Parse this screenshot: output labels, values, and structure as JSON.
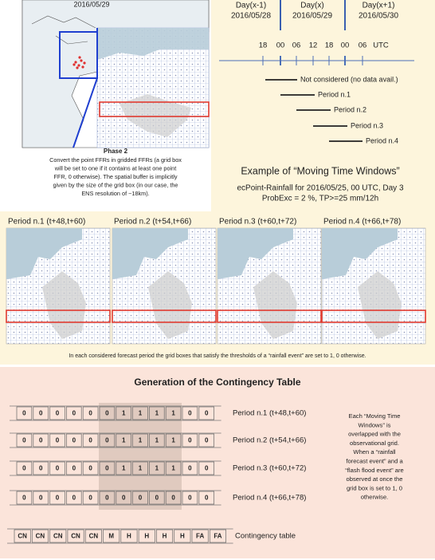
{
  "map_panel": {
    "date": "2016/05/29",
    "phase": "Phase 2",
    "description": [
      "Convert the point FFRs in gridded FFRs (a grid box",
      "will be set to one if it contains at least one point",
      "FFR, 0 otherwise). The spatial buffer is implicitly",
      "given by the size of the grid box (in our case, the",
      "ENS resolution of ~18km)."
    ]
  },
  "timeline": {
    "days": [
      {
        "label": "Day(x-1)",
        "date": "2016/05/28"
      },
      {
        "label": "Day(x)",
        "date": "2016/05/29"
      },
      {
        "label": "Day(x+1)",
        "date": "2016/05/30"
      }
    ],
    "hours": [
      "18",
      "00",
      "06",
      "12",
      "18",
      "00",
      "06",
      "UTC"
    ],
    "periods": [
      "Not considered (no data avail.)",
      "Period n.1",
      "Period n.2",
      "Period n.3",
      "Period n.4"
    ],
    "title": "Example of “Moving Time Windows”",
    "subtitle": [
      "ecPoint-Rainfall for 2016/05/25, 00 UTC, Day 3",
      "ProbExc = 2 %, TP>=25 mm/12h"
    ]
  },
  "windows": {
    "panels": [
      "Period n.1 (t+48,t+60)",
      "Period n.2 (t+54,t+66)",
      "Period n.3 (t+60,t+72)",
      "Period n.4 (t+66,t+78)"
    ],
    "caption": "In each considered forecast period the grid boxes that satisfy the thresholds of a “rainfall event” are set to 1, 0 otherwise."
  },
  "contingency": {
    "title": "Generation of the Contingency Table",
    "rows": [
      {
        "label": "Period n.1 (t+48,t+60)",
        "cells": [
          0,
          0,
          0,
          0,
          0,
          0,
          1,
          1,
          1,
          1,
          0,
          0
        ]
      },
      {
        "label": "Period n.2 (t+54,t+66)",
        "cells": [
          0,
          0,
          0,
          0,
          0,
          0,
          1,
          1,
          1,
          1,
          0,
          0
        ]
      },
      {
        "label": "Period n.3 (t+60,t+72)",
        "cells": [
          0,
          0,
          0,
          0,
          0,
          0,
          1,
          1,
          1,
          1,
          0,
          0
        ]
      },
      {
        "label": "Period n.4 (t+66,t+78)",
        "cells": [
          0,
          0,
          0,
          0,
          0,
          0,
          0,
          0,
          0,
          0,
          0,
          0
        ]
      }
    ],
    "table": {
      "label": "Contingency table",
      "cells": [
        "CN",
        "CN",
        "CN",
        "CN",
        "CN",
        "M",
        "H",
        "H",
        "H",
        "H",
        "FA",
        "FA"
      ]
    },
    "note": [
      "Each “Moving Time",
      "Windows” is",
      "overlapped with the",
      "observational grid.",
      "When a “rainfall",
      "forecast event” and a",
      "“flash flood event” are",
      "observed at once the",
      "grid box is set to 1, 0",
      "otherwise."
    ]
  }
}
